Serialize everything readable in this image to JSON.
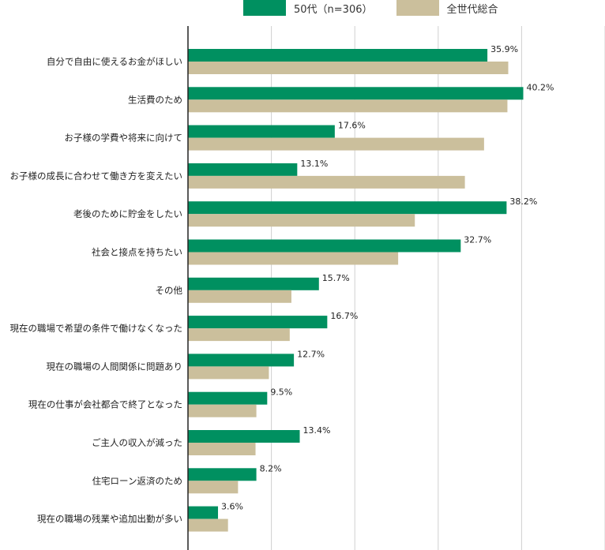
{
  "chart_data": {
    "type": "bar",
    "orientation": "horizontal",
    "categories": [
      "自分で自由に使えるお金がほしい",
      "生活費のため",
      "お子様の学費や将来に向けて",
      "お子様の成長に合わせて働き方を変えたい",
      "老後のために貯金をしたい",
      "社会と接点を持ちたい",
      "その他",
      "現在の職場で希望の条件で働けなくなった",
      "現在の職場の人間関係に問題あり",
      "現在の仕事が会社都合で終了となった",
      "ご主人の収入が減った",
      "住宅ローン返済のため",
      "現在の職場の残業や追加出勤が多い"
    ],
    "series": [
      {
        "name": "50代（n=306）",
        "color": "#009060",
        "values": [
          35.9,
          40.2,
          17.6,
          13.1,
          38.2,
          32.7,
          15.7,
          16.7,
          12.7,
          9.5,
          13.4,
          8.2,
          3.6
        ],
        "labels": [
          "35.9%",
          "40.2%",
          "17.6%",
          "13.1%",
          "38.2%",
          "32.7%",
          "15.7%",
          "16.7%",
          "12.7%",
          "9.5%",
          "13.4%",
          "8.2%",
          "3.6%"
        ]
      },
      {
        "name": "全世代総合",
        "color": "#cbbf9c",
        "values": [
          38.4,
          38.3,
          35.5,
          33.2,
          27.2,
          25.2,
          12.4,
          12.2,
          9.7,
          8.2,
          8.1,
          6.0,
          4.8
        ]
      }
    ],
    "xlim": [
      0,
      50
    ],
    "grid": true,
    "legend_position": "top"
  }
}
